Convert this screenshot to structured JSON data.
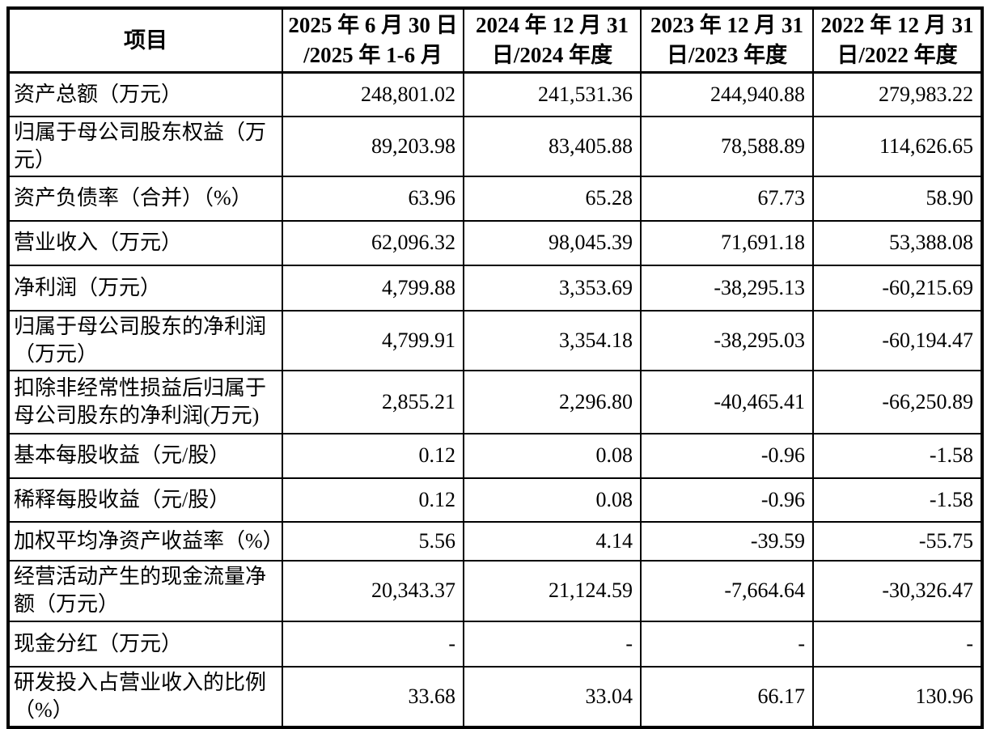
{
  "colors": {
    "background": "#ffffff",
    "border": "#000000",
    "text": "#000000"
  },
  "table": {
    "columns": [
      {
        "lines": [
          "项目"
        ]
      },
      {
        "lines": [
          "2025 年 6 月 30 日",
          "/2025 年 1-6 月"
        ]
      },
      {
        "lines": [
          "2024 年 12 月 31",
          "日/2024 年度"
        ]
      },
      {
        "lines": [
          "2023 年 12 月 31",
          "日/2023 年度"
        ]
      },
      {
        "lines": [
          "2022 年 12 月 31",
          "日/2022 年度"
        ]
      }
    ],
    "rows": [
      {
        "label_lines": [
          "资产总额（万元）"
        ],
        "values": [
          "248,801.02",
          "241,531.36",
          "244,940.88",
          "279,983.22"
        ]
      },
      {
        "label_lines": [
          "归属于母公司股东权益（万",
          "元）"
        ],
        "values": [
          "89,203.98",
          "83,405.88",
          "78,588.89",
          "114,626.65"
        ]
      },
      {
        "label_lines": [
          "资产负债率（合并）（%）"
        ],
        "values": [
          "63.96",
          "65.28",
          "67.73",
          "58.90"
        ]
      },
      {
        "label_lines": [
          "营业收入（万元）"
        ],
        "values": [
          "62,096.32",
          "98,045.39",
          "71,691.18",
          "53,388.08"
        ]
      },
      {
        "label_lines": [
          "净利润（万元）"
        ],
        "values": [
          "4,799.88",
          "3,353.69",
          "-38,295.13",
          "-60,215.69"
        ]
      },
      {
        "label_lines": [
          "归属于母公司股东的净利润",
          "（万元）"
        ],
        "values": [
          "4,799.91",
          "3,354.18",
          "-38,295.03",
          "-60,194.47"
        ]
      },
      {
        "label_lines": [
          "扣除非经常性损益后归属于",
          "母公司股东的净利润(万元)"
        ],
        "values": [
          "2,855.21",
          "2,296.80",
          "-40,465.41",
          "-66,250.89"
        ]
      },
      {
        "label_lines": [
          "基本每股收益（元/股）"
        ],
        "values": [
          "0.12",
          "0.08",
          "-0.96",
          "-1.58"
        ]
      },
      {
        "label_lines": [
          "稀释每股收益（元/股）"
        ],
        "values": [
          "0.12",
          "0.08",
          "-0.96",
          "-1.58"
        ]
      },
      {
        "label_lines": [
          "加权平均净资产收益率（%）"
        ],
        "values": [
          "5.56",
          "4.14",
          "-39.59",
          "-55.75"
        ]
      },
      {
        "label_lines": [
          "经营活动产生的现金流量净",
          "额（万元）"
        ],
        "values": [
          "20,343.37",
          "21,124.59",
          "-7,664.64",
          "-30,326.47"
        ]
      },
      {
        "label_lines": [
          "现金分红（万元）"
        ],
        "values": [
          "-",
          "-",
          "-",
          "-"
        ]
      },
      {
        "label_lines": [
          "研发投入占营业收入的比例",
          "（%）"
        ],
        "values": [
          "33.68",
          "33.04",
          "66.17",
          "130.96"
        ]
      }
    ]
  }
}
